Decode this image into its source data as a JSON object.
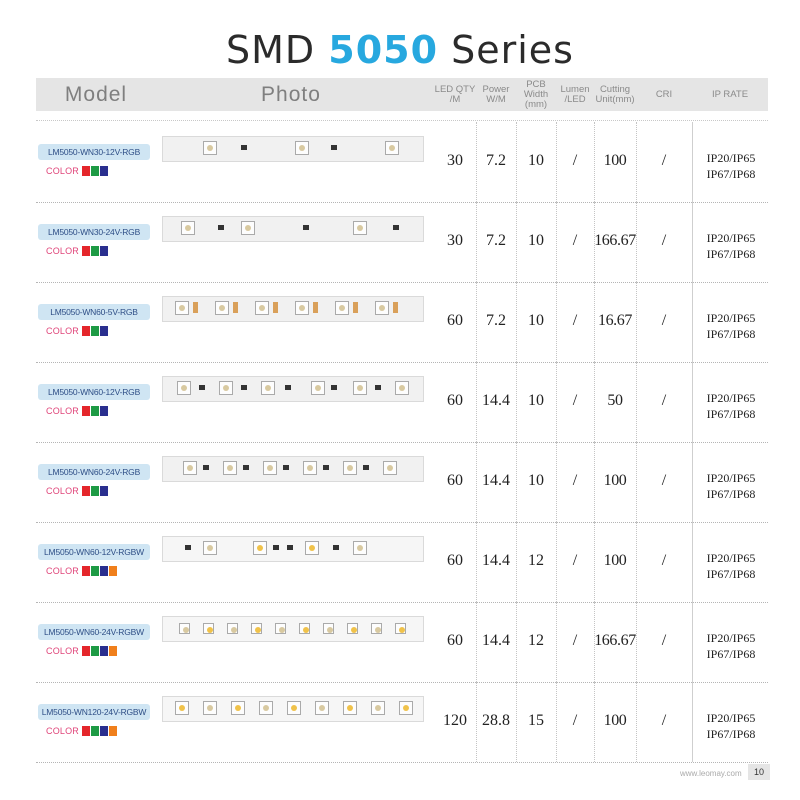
{
  "title": {
    "prefix": "SMD",
    "highlight": "5050",
    "suffix": "Series"
  },
  "headers": {
    "model": "Model",
    "photo": "Photo",
    "qty": "LED QTY /M",
    "power": "Power W/M",
    "pcb": "PCB Width (mm)",
    "lumen": "Lumen /LED",
    "cutting": "Cutting Unit(mm)",
    "cri": "CRI",
    "ip": "IP RATE"
  },
  "color_label": "COLOR",
  "colors": {
    "red": "#e4262b",
    "green": "#1d9a44",
    "blue": "#2a2f8f",
    "orange": "#f07f1b"
  },
  "rows": [
    {
      "model": "LM5050-WN30-12V-RGB",
      "qty": "30",
      "power": "7.2",
      "pcb": "10",
      "lumen": "/",
      "cutting": "100",
      "cri": "/",
      "ip1": "IP20/IP65",
      "ip2": "IP67/IP68",
      "swatches": [
        "red",
        "green",
        "blue"
      ]
    },
    {
      "model": "LM5050-WN30-24V-RGB",
      "qty": "30",
      "power": "7.2",
      "pcb": "10",
      "lumen": "/",
      "cutting": "166.67",
      "cri": "/",
      "ip1": "IP20/IP65",
      "ip2": "IP67/IP68",
      "swatches": [
        "red",
        "green",
        "blue"
      ]
    },
    {
      "model": "LM5050-WN60-5V-RGB",
      "qty": "60",
      "power": "7.2",
      "pcb": "10",
      "lumen": "/",
      "cutting": "16.67",
      "cri": "/",
      "ip1": "IP20/IP65",
      "ip2": "IP67/IP68",
      "swatches": [
        "red",
        "green",
        "blue"
      ]
    },
    {
      "model": "LM5050-WN60-12V-RGB",
      "qty": "60",
      "power": "14.4",
      "pcb": "10",
      "lumen": "/",
      "cutting": "50",
      "cri": "/",
      "ip1": "IP20/IP65",
      "ip2": "IP67/IP68",
      "swatches": [
        "red",
        "green",
        "blue"
      ]
    },
    {
      "model": "LM5050-WN60-24V-RGB",
      "qty": "60",
      "power": "14.4",
      "pcb": "10",
      "lumen": "/",
      "cutting": "100",
      "cri": "/",
      "ip1": "IP20/IP65",
      "ip2": "IP67/IP68",
      "swatches": [
        "red",
        "green",
        "blue"
      ]
    },
    {
      "model": "LM5050-WN60-12V-RGBW",
      "qty": "60",
      "power": "14.4",
      "pcb": "12",
      "lumen": "/",
      "cutting": "100",
      "cri": "/",
      "ip1": "IP20/IP65",
      "ip2": "IP67/IP68",
      "swatches": [
        "red",
        "green",
        "blue",
        "orange"
      ]
    },
    {
      "model": "LM5050-WN60-24V-RGBW",
      "qty": "60",
      "power": "14.4",
      "pcb": "12",
      "lumen": "/",
      "cutting": "166.67",
      "cri": "/",
      "ip1": "IP20/IP65",
      "ip2": "IP67/IP68",
      "swatches": [
        "red",
        "green",
        "blue",
        "orange"
      ]
    },
    {
      "model": "LM5050-WN120-24V-RGBW",
      "qty": "120",
      "power": "28.8",
      "pcb": "15",
      "lumen": "/",
      "cutting": "100",
      "cri": "/",
      "ip1": "IP20/IP65",
      "ip2": "IP67/IP68",
      "swatches": [
        "red",
        "green",
        "blue",
        "orange"
      ]
    }
  ],
  "footer": {
    "site": "www.leomay.com",
    "page": "10"
  }
}
